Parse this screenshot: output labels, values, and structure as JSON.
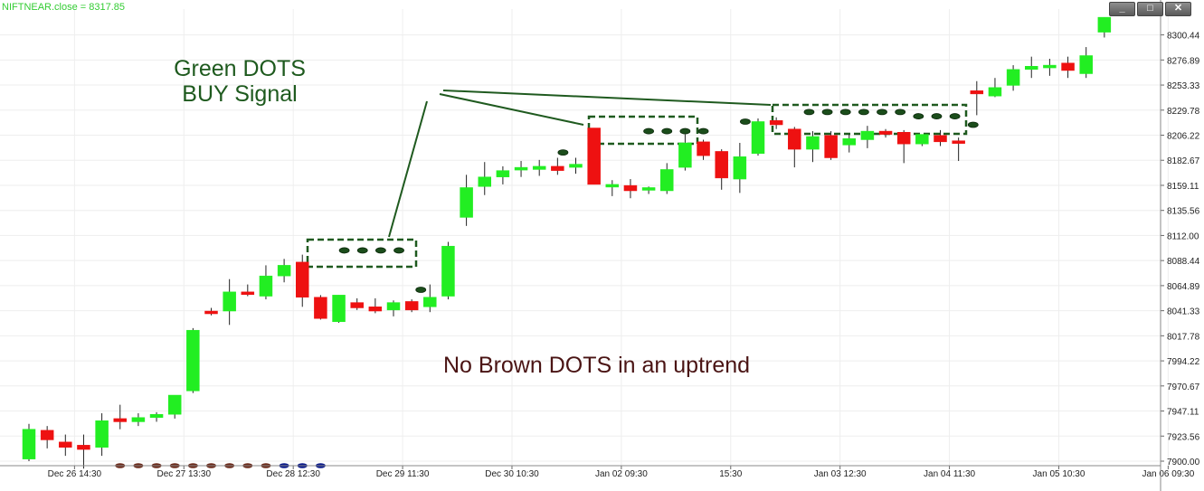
{
  "window": {
    "series_label": "NIFTNEAR.close = 8317.85",
    "buttons": [
      {
        "name": "minimize",
        "glyph": "_"
      },
      {
        "name": "maximize",
        "glyph": "□"
      },
      {
        "name": "close",
        "glyph": "✕"
      }
    ]
  },
  "chart_data": {
    "type": "candlestick",
    "series_label": "NIFTNEAR.close = 8317.85",
    "ylim": [
      7900,
      8324
    ],
    "y_ticks": [
      7900.0,
      7923.56,
      7947.11,
      7970.67,
      7994.22,
      8017.78,
      8041.33,
      8064.89,
      8088.44,
      8112.0,
      8135.56,
      8159.11,
      8182.67,
      8206.22,
      8229.78,
      8253.33,
      8276.89,
      8300.44
    ],
    "x_ticks": [
      {
        "index": 2.5,
        "label": "Dec 26 14:30"
      },
      {
        "index": 8.5,
        "label": "Dec 27 13:30"
      },
      {
        "index": 14.5,
        "label": "Dec 28 12:30"
      },
      {
        "index": 20.5,
        "label": "Dec 29 11:30"
      },
      {
        "index": 26.5,
        "label": "Dec 30 10:30"
      },
      {
        "index": 32.5,
        "label": "Jan 02 09:30"
      },
      {
        "index": 38.5,
        "label": "15:30"
      },
      {
        "index": 44.5,
        "label": "Jan 03 12:30"
      },
      {
        "index": 50.5,
        "label": "Jan 04 11:30"
      },
      {
        "index": 56.5,
        "label": "Jan 05 10:30"
      },
      {
        "index": 62.5,
        "label": "Jan 06 09:30"
      }
    ],
    "candles": [
      {
        "o": 7902,
        "h": 7935,
        "l": 7900,
        "c": 7930
      },
      {
        "o": 7929,
        "h": 7933,
        "l": 7912,
        "c": 7920
      },
      {
        "o": 7918,
        "h": 7925,
        "l": 7905,
        "c": 7913
      },
      {
        "o": 7915,
        "h": 7925,
        "l": 7893,
        "c": 7911
      },
      {
        "o": 7913,
        "h": 7945,
        "l": 7905,
        "c": 7938
      },
      {
        "o": 7940,
        "h": 7953,
        "l": 7930,
        "c": 7937
      },
      {
        "o": 7937,
        "h": 7945,
        "l": 7933,
        "c": 7941
      },
      {
        "o": 7941,
        "h": 7946,
        "l": 7937,
        "c": 7944
      },
      {
        "o": 7944,
        "h": 7962,
        "l": 7940,
        "c": 7962
      },
      {
        "o": 7966,
        "h": 8025,
        "l": 7964,
        "c": 8023
      },
      {
        "o": 8041,
        "h": 8044,
        "l": 8037,
        "c": 8039
      },
      {
        "o": 8041,
        "h": 8071,
        "l": 8028,
        "c": 8059
      },
      {
        "o": 8059,
        "h": 8066,
        "l": 8055,
        "c": 8057
      },
      {
        "o": 8055,
        "h": 8084,
        "l": 8052,
        "c": 8074
      },
      {
        "o": 8074,
        "h": 8090,
        "l": 8068,
        "c": 8084
      },
      {
        "o": 8087,
        "h": 8094,
        "l": 8045,
        "c": 8054
      },
      {
        "o": 8054,
        "h": 8056,
        "l": 8033,
        "c": 8034
      },
      {
        "o": 8031,
        "h": 8056,
        "l": 8030,
        "c": 8056
      },
      {
        "o": 8049,
        "h": 8053,
        "l": 8042,
        "c": 8044
      },
      {
        "o": 8045,
        "h": 8053,
        "l": 8039,
        "c": 8041
      },
      {
        "o": 8042,
        "h": 8051,
        "l": 8036,
        "c": 8049
      },
      {
        "o": 8050,
        "h": 8052,
        "l": 8040,
        "c": 8042
      },
      {
        "o": 8045,
        "h": 8066,
        "l": 8040,
        "c": 8054
      },
      {
        "o": 8055,
        "h": 8106,
        "l": 8052,
        "c": 8102
      },
      {
        "o": 8129,
        "h": 8169,
        "l": 8121,
        "c": 8157
      },
      {
        "o": 8158,
        "h": 8181,
        "l": 8150,
        "c": 8167
      },
      {
        "o": 8167,
        "h": 8177,
        "l": 8160,
        "c": 8173
      },
      {
        "o": 8176,
        "h": 8182,
        "l": 8167,
        "c": 8176
      },
      {
        "o": 8174,
        "h": 8183,
        "l": 8168,
        "c": 8177
      },
      {
        "o": 8177,
        "h": 8185,
        "l": 8169,
        "c": 8173
      },
      {
        "o": 8176,
        "h": 8185,
        "l": 8170,
        "c": 8179
      },
      {
        "o": 8213,
        "h": 8213,
        "l": 8160,
        "c": 8160
      },
      {
        "o": 8159,
        "h": 8164,
        "l": 8149,
        "c": 8160
      },
      {
        "o": 8159,
        "h": 8165,
        "l": 8147,
        "c": 8154
      },
      {
        "o": 8156,
        "h": 8158,
        "l": 8151,
        "c": 8157
      },
      {
        "o": 8154,
        "h": 8180,
        "l": 8151,
        "c": 8174
      },
      {
        "o": 8176,
        "h": 8207,
        "l": 8173,
        "c": 8199
      },
      {
        "o": 8200,
        "h": 8202,
        "l": 8183,
        "c": 8187
      },
      {
        "o": 8191,
        "h": 8193,
        "l": 8155,
        "c": 8166
      },
      {
        "o": 8165,
        "h": 8199,
        "l": 8152,
        "c": 8186
      },
      {
        "o": 8189,
        "h": 8222,
        "l": 8187,
        "c": 8219
      },
      {
        "o": 8220,
        "h": 8223,
        "l": 8212,
        "c": 8216
      },
      {
        "o": 8212,
        "h": 8214,
        "l": 8176,
        "c": 8193
      },
      {
        "o": 8193,
        "h": 8210,
        "l": 8181,
        "c": 8205
      },
      {
        "o": 8206,
        "h": 8210,
        "l": 8183,
        "c": 8185
      },
      {
        "o": 8197,
        "h": 8207,
        "l": 8190,
        "c": 8203
      },
      {
        "o": 8202,
        "h": 8215,
        "l": 8194,
        "c": 8210
      },
      {
        "o": 8210,
        "h": 8212,
        "l": 8204,
        "c": 8207
      },
      {
        "o": 8209,
        "h": 8211,
        "l": 8180,
        "c": 8198
      },
      {
        "o": 8198,
        "h": 8207,
        "l": 8196,
        "c": 8207
      },
      {
        "o": 8206,
        "h": 8211,
        "l": 8196,
        "c": 8200
      },
      {
        "o": 8201,
        "h": 8204,
        "l": 8182,
        "c": 8200
      },
      {
        "o": 8248,
        "h": 8257,
        "l": 8225,
        "c": 8245
      },
      {
        "o": 8243,
        "h": 8260,
        "l": 8242,
        "c": 8251
      },
      {
        "o": 8253,
        "h": 8272,
        "l": 8248,
        "c": 8268
      },
      {
        "o": 8268,
        "h": 8280,
        "l": 8260,
        "c": 8271
      },
      {
        "o": 8270,
        "h": 8278,
        "l": 8262,
        "c": 8272
      },
      {
        "o": 8274,
        "h": 8280,
        "l": 8260,
        "c": 8267
      },
      {
        "o": 8264,
        "h": 8289,
        "l": 8260,
        "c": 8281
      },
      {
        "o": 8303,
        "h": 8317,
        "l": 8298,
        "c": 8317
      }
    ],
    "green_dots": [
      {
        "index": 17.3,
        "y": 8098
      },
      {
        "index": 18.3,
        "y": 8098
      },
      {
        "index": 19.3,
        "y": 8098
      },
      {
        "index": 20.3,
        "y": 8098
      },
      {
        "index": 21.5,
        "y": 8061
      },
      {
        "index": 29.3,
        "y": 8190
      },
      {
        "index": 34.0,
        "y": 8210
      },
      {
        "index": 35.0,
        "y": 8210
      },
      {
        "index": 36.0,
        "y": 8210
      },
      {
        "index": 37.0,
        "y": 8210
      },
      {
        "index": 39.3,
        "y": 8219
      },
      {
        "index": 42.8,
        "y": 8228
      },
      {
        "index": 43.8,
        "y": 8228
      },
      {
        "index": 44.8,
        "y": 8228
      },
      {
        "index": 45.8,
        "y": 8228
      },
      {
        "index": 46.8,
        "y": 8228
      },
      {
        "index": 47.8,
        "y": 8228
      },
      {
        "index": 48.8,
        "y": 8224
      },
      {
        "index": 49.8,
        "y": 8224
      },
      {
        "index": 50.8,
        "y": 8224
      },
      {
        "index": 51.8,
        "y": 8216
      }
    ],
    "brown_dots": [
      {
        "index": 5.0,
        "y": 7900,
        "color": "#6b2a1a"
      },
      {
        "index": 6.0,
        "y": 7900,
        "color": "#6b2a1a"
      },
      {
        "index": 7.0,
        "y": 7900,
        "color": "#6b2a1a"
      },
      {
        "index": 8.0,
        "y": 7900,
        "color": "#6b2a1a"
      },
      {
        "index": 9.0,
        "y": 7900,
        "color": "#6b2a1a"
      },
      {
        "index": 10.0,
        "y": 7900,
        "color": "#6b2a1a"
      },
      {
        "index": 11.0,
        "y": 7900,
        "color": "#6b2a1a"
      },
      {
        "index": 12.0,
        "y": 7900,
        "color": "#6b2a1a"
      },
      {
        "index": 13.0,
        "y": 7900,
        "color": "#6b2a1a"
      },
      {
        "index": 14.0,
        "y": 7900,
        "color": "#0a1a8a"
      },
      {
        "index": 15.0,
        "y": 7900,
        "color": "#0a1a8a"
      },
      {
        "index": 16.0,
        "y": 7900,
        "color": "#0a1a8a"
      }
    ],
    "annotations": {
      "green_text_line1": "Green DOTS",
      "green_text_line2": "BUY Signal",
      "brown_text": "No Brown DOTS in an uptrend"
    },
    "colors": {
      "up": "#22ee22",
      "down": "#ee1111",
      "dot": "#1b4d1b",
      "box": "#1f5a1f",
      "grid": "#eeeeee",
      "label_green": "#33cc33"
    }
  }
}
